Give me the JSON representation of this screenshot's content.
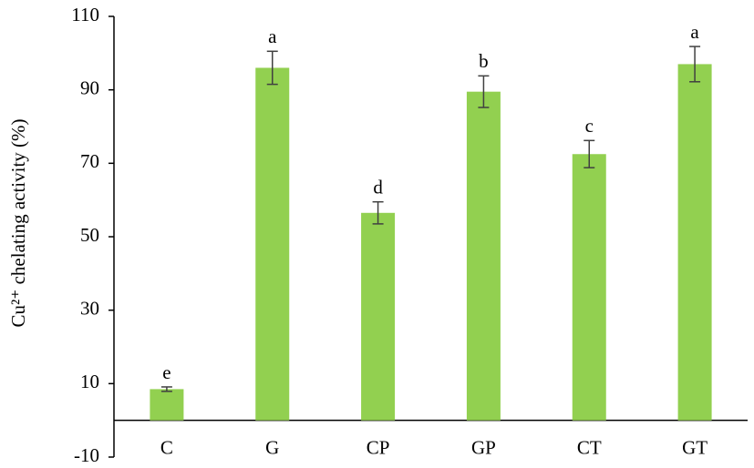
{
  "chart_data": {
    "type": "bar",
    "y_label": "Cu²⁺ chelating activity (%)",
    "categories": [
      "C",
      "G",
      "CP",
      "GP",
      "CT",
      "GT"
    ],
    "values": [
      8.5,
      96,
      56.5,
      89.5,
      72.5,
      97
    ],
    "errors": [
      0.6,
      4.5,
      3,
      4.3,
      3.7,
      4.8
    ],
    "annotations": [
      "e",
      "a",
      "d",
      "b",
      "c",
      "a"
    ],
    "color": "#92d050",
    "error_color": "#404040",
    "ylim": [
      -10,
      110
    ],
    "yticks": [
      -10,
      10,
      30,
      50,
      70,
      90,
      110
    ],
    "grid": false
  }
}
